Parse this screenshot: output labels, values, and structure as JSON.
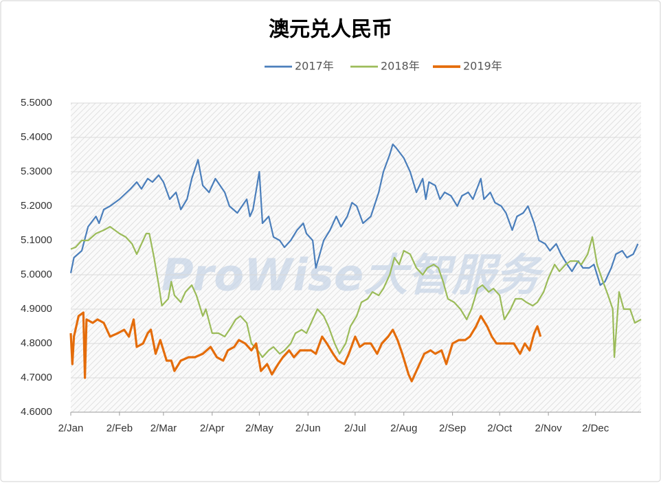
{
  "chart_data": {
    "type": "line",
    "title": "澳元兑人民币",
    "watermark": "ProWise大智服务",
    "xlim": [
      "2/Jan",
      "31/Dec"
    ],
    "xticks": [
      "2/Jan",
      "2/Feb",
      "2/Mar",
      "2/Apr",
      "2/May",
      "2/Jun",
      "2/Jul",
      "2/Aug",
      "2/Sep",
      "2/Oct",
      "2/Nov",
      "2/Dec"
    ],
    "ylim": [
      4.6,
      5.5
    ],
    "yticks": [
      {
        "value": 4.6,
        "label": "4.6000"
      },
      {
        "value": 4.7,
        "label": "4.7000"
      },
      {
        "value": 4.8,
        "label": "4.8000"
      },
      {
        "value": 4.9,
        "label": "4.9000"
      },
      {
        "value": 5.0,
        "label": "5.0000"
      },
      {
        "value": 5.1,
        "label": "5.1000"
      },
      {
        "value": 5.2,
        "label": "5.2000"
      },
      {
        "value": 5.3,
        "label": "5.3000"
      },
      {
        "value": 5.4,
        "label": "5.4000"
      },
      {
        "value": 5.5,
        "label": "5.5000"
      }
    ],
    "grid": true,
    "legend": "top",
    "series": [
      {
        "name": "2017年",
        "color": "#4a7ebb",
        "width": 2.2,
        "x": [
          "2/Jan",
          "4/Jan",
          "9/Jan",
          "13/Jan",
          "18/Jan",
          "20/Jan",
          "23/Jan",
          "27/Jan",
          "2/Feb",
          "9/Feb",
          "13/Feb",
          "16/Feb",
          "20/Feb",
          "23/Feb",
          "27/Feb",
          "2/Mar",
          "6/Mar",
          "10/Mar",
          "13/Mar",
          "17/Mar",
          "20/Mar",
          "24/Mar",
          "27/Mar",
          "31/Mar",
          "4/Apr",
          "10/Apr",
          "13/Apr",
          "18/Apr",
          "24/Apr",
          "26/Apr",
          "28/Apr",
          "2/May",
          "4/May",
          "8/May",
          "11/May",
          "15/May",
          "18/May",
          "22/May",
          "26/May",
          "30/May",
          "1/Jun",
          "5/Jun",
          "7/Jun",
          "12/Jun",
          "16/Jun",
          "20/Jun",
          "23/Jun",
          "27/Jun",
          "30/Jun",
          "3/Jul",
          "7/Jul",
          "12/Jul",
          "17/Jul",
          "20/Jul",
          "24/Jul",
          "26/Jul",
          "28/Jul",
          "2/Aug",
          "6/Aug",
          "10/Aug",
          "14/Aug",
          "16/Aug",
          "18/Aug",
          "22/Aug",
          "25/Aug",
          "28/Aug",
          "1/Sep",
          "5/Sep",
          "8/Sep",
          "12/Sep",
          "15/Sep",
          "20/Sep",
          "22/Sep",
          "26/Sep",
          "29/Sep",
          "3/Oct",
          "6/Oct",
          "10/Oct",
          "13/Oct",
          "17/Oct",
          "20/Oct",
          "24/Oct",
          "27/Oct",
          "31/Oct",
          "3/Nov",
          "7/Nov",
          "10/Nov",
          "14/Nov",
          "17/Nov",
          "21/Nov",
          "24/Nov",
          "28/Nov",
          "1/Dec",
          "5/Dec",
          "8/Dec",
          "12/Dec",
          "15/Dec",
          "19/Dec",
          "22/Dec",
          "26/Dec",
          "29/Dec"
        ],
        "values": [
          5.005,
          5.05,
          5.07,
          5.14,
          5.17,
          5.15,
          5.19,
          5.2,
          5.22,
          5.25,
          5.27,
          5.25,
          5.28,
          5.27,
          5.29,
          5.27,
          5.22,
          5.24,
          5.19,
          5.22,
          5.28,
          5.335,
          5.26,
          5.24,
          5.28,
          5.24,
          5.2,
          5.18,
          5.22,
          5.17,
          5.19,
          5.3,
          5.15,
          5.17,
          5.11,
          5.1,
          5.08,
          5.1,
          5.13,
          5.15,
          5.12,
          5.1,
          5.02,
          5.1,
          5.13,
          5.17,
          5.14,
          5.17,
          5.21,
          5.2,
          5.15,
          5.17,
          5.24,
          5.3,
          5.35,
          5.38,
          5.37,
          5.34,
          5.3,
          5.24,
          5.28,
          5.22,
          5.27,
          5.26,
          5.22,
          5.24,
          5.23,
          5.2,
          5.23,
          5.24,
          5.22,
          5.28,
          5.22,
          5.24,
          5.21,
          5.2,
          5.18,
          5.13,
          5.17,
          5.18,
          5.2,
          5.15,
          5.1,
          5.09,
          5.07,
          5.09,
          5.06,
          5.03,
          5.01,
          5.04,
          5.02,
          5.02,
          5.03,
          4.97,
          4.98,
          5.02,
          5.06,
          5.07,
          5.05,
          5.06,
          5.09
        ]
      },
      {
        "name": "2018年",
        "color": "#9bbb59",
        "width": 2.2,
        "x": [
          "2/Jan",
          "5/Jan",
          "9/Jan",
          "13/Jan",
          "18/Jan",
          "23/Jan",
          "27/Jan",
          "2/Feb",
          "6/Feb",
          "10/Feb",
          "13/Feb",
          "19/Feb",
          "21/Feb",
          "24/Feb",
          "27/Feb",
          "1/Mar",
          "5/Mar",
          "7/Mar",
          "9/Mar",
          "13/Mar",
          "16/Mar",
          "20/Mar",
          "23/Mar",
          "27/Mar",
          "29/Mar",
          "2/Apr",
          "6/Apr",
          "10/Apr",
          "13/Apr",
          "17/Apr",
          "20/Apr",
          "24/Apr",
          "27/Apr",
          "1/May",
          "4/May",
          "8/May",
          "11/May",
          "15/May",
          "18/May",
          "22/May",
          "25/May",
          "29/May",
          "1/Jun",
          "5/Jun",
          "8/Jun",
          "12/Jun",
          "15/Jun",
          "19/Jun",
          "22/Jun",
          "26/Jun",
          "29/Jun",
          "3/Jul",
          "6/Jul",
          "10/Jul",
          "13/Jul",
          "17/Jul",
          "20/Jul",
          "24/Jul",
          "27/Jul",
          "30/Jul",
          "2/Aug",
          "6/Aug",
          "10/Aug",
          "14/Aug",
          "17/Aug",
          "21/Aug",
          "24/Aug",
          "27/Aug",
          "30/Aug",
          "3/Sep",
          "7/Sep",
          "11/Sep",
          "14/Sep",
          "18/Sep",
          "21/Sep",
          "25/Sep",
          "28/Sep",
          "2/Oct",
          "5/Oct",
          "9/Oct",
          "12/Oct",
          "16/Oct",
          "19/Oct",
          "23/Oct",
          "26/Oct",
          "30/Oct",
          "2/Nov",
          "6/Nov",
          "9/Nov",
          "13/Nov",
          "16/Nov",
          "20/Nov",
          "23/Nov",
          "27/Nov",
          "30/Nov",
          "3/Dec",
          "6/Dec",
          "10/Dec",
          "13/Dec",
          "14/Dec",
          "17/Dec",
          "20/Dec",
          "24/Dec",
          "27/Dec",
          "31/Dec"
        ],
        "values": [
          5.075,
          5.08,
          5.1,
          5.1,
          5.12,
          5.13,
          5.14,
          5.12,
          5.11,
          5.09,
          5.06,
          5.12,
          5.12,
          5.05,
          4.97,
          4.91,
          4.93,
          4.98,
          4.94,
          4.92,
          4.95,
          4.97,
          4.94,
          4.88,
          4.9,
          4.83,
          4.83,
          4.82,
          4.84,
          4.87,
          4.88,
          4.86,
          4.8,
          4.78,
          4.76,
          4.78,
          4.79,
          4.77,
          4.78,
          4.8,
          4.83,
          4.84,
          4.83,
          4.87,
          4.9,
          4.88,
          4.85,
          4.8,
          4.77,
          4.8,
          4.85,
          4.88,
          4.92,
          4.93,
          4.95,
          4.94,
          4.96,
          5.0,
          5.05,
          5.03,
          5.07,
          5.06,
          5.02,
          5.0,
          5.02,
          5.03,
          5.02,
          4.98,
          4.93,
          4.92,
          4.9,
          4.87,
          4.9,
          4.96,
          4.97,
          4.95,
          4.96,
          4.94,
          4.87,
          4.9,
          4.93,
          4.93,
          4.92,
          4.91,
          4.92,
          4.95,
          4.99,
          5.03,
          5.01,
          5.03,
          5.04,
          5.04,
          5.03,
          5.06,
          5.11,
          5.03,
          4.99,
          4.94,
          4.9,
          4.76,
          4.95,
          4.9,
          4.9,
          4.86,
          4.87
        ]
      },
      {
        "name": "2019年",
        "color": "#e46c0a",
        "width": 3.2,
        "x": [
          "2/Jan",
          "3/Jan",
          "4/Jan",
          "7/Jan",
          "10/Jan",
          "11/Jan",
          "12/Jan",
          "16/Jan",
          "19/Jan",
          "23/Jan",
          "27/Jan",
          "1/Feb",
          "5/Feb",
          "8/Feb",
          "11/Feb",
          "13/Feb",
          "17/Feb",
          "20/Feb",
          "22/Feb",
          "25/Feb",
          "28/Feb",
          "4/Mar",
          "7/Mar",
          "9/Mar",
          "13/Mar",
          "18/Mar",
          "22/Mar",
          "27/Mar",
          "1/Apr",
          "5/Apr",
          "9/Apr",
          "12/Apr",
          "16/Apr",
          "19/Apr",
          "23/Apr",
          "27/Apr",
          "30/Apr",
          "3/May",
          "7/May",
          "10/May",
          "14/May",
          "17/May",
          "21/May",
          "24/May",
          "28/May",
          "31/May",
          "4/Jun",
          "7/Jun",
          "11/Jun",
          "14/Jun",
          "18/Jun",
          "21/Jun",
          "25/Jun",
          "28/Jun",
          "2/Jul",
          "5/Jul",
          "8/Jul",
          "12/Jul",
          "16/Jul",
          "19/Jul",
          "23/Jul",
          "26/Jul",
          "29/Jul",
          "1/Aug",
          "5/Aug",
          "7/Aug",
          "12/Aug",
          "15/Aug",
          "19/Aug",
          "22/Aug",
          "26/Aug",
          "29/Aug",
          "2/Sep",
          "6/Sep",
          "10/Sep",
          "13/Sep",
          "17/Sep",
          "20/Sep",
          "24/Sep",
          "27/Sep",
          "30/Sep",
          "4/Oct",
          "8/Oct",
          "11/Oct",
          "15/Oct",
          "18/Oct",
          "21/Oct",
          "24/Oct",
          "26/Oct",
          "28/Oct"
        ],
        "values": [
          4.83,
          4.74,
          4.82,
          4.88,
          4.89,
          4.7,
          4.87,
          4.86,
          4.87,
          4.86,
          4.82,
          4.83,
          4.84,
          4.82,
          4.87,
          4.79,
          4.8,
          4.83,
          4.84,
          4.77,
          4.81,
          4.75,
          4.75,
          4.72,
          4.75,
          4.76,
          4.76,
          4.77,
          4.79,
          4.76,
          4.75,
          4.78,
          4.79,
          4.81,
          4.8,
          4.78,
          4.8,
          4.72,
          4.74,
          4.71,
          4.74,
          4.76,
          4.78,
          4.76,
          4.78,
          4.78,
          4.78,
          4.77,
          4.82,
          4.8,
          4.77,
          4.75,
          4.74,
          4.77,
          4.82,
          4.79,
          4.8,
          4.8,
          4.77,
          4.8,
          4.82,
          4.84,
          4.81,
          4.77,
          4.71,
          4.69,
          4.74,
          4.77,
          4.78,
          4.77,
          4.78,
          4.74,
          4.8,
          4.81,
          4.81,
          4.82,
          4.85,
          4.88,
          4.85,
          4.82,
          4.8,
          4.8,
          4.8,
          4.8,
          4.77,
          4.8,
          4.78,
          4.83,
          4.85,
          4.82
        ]
      }
    ]
  }
}
